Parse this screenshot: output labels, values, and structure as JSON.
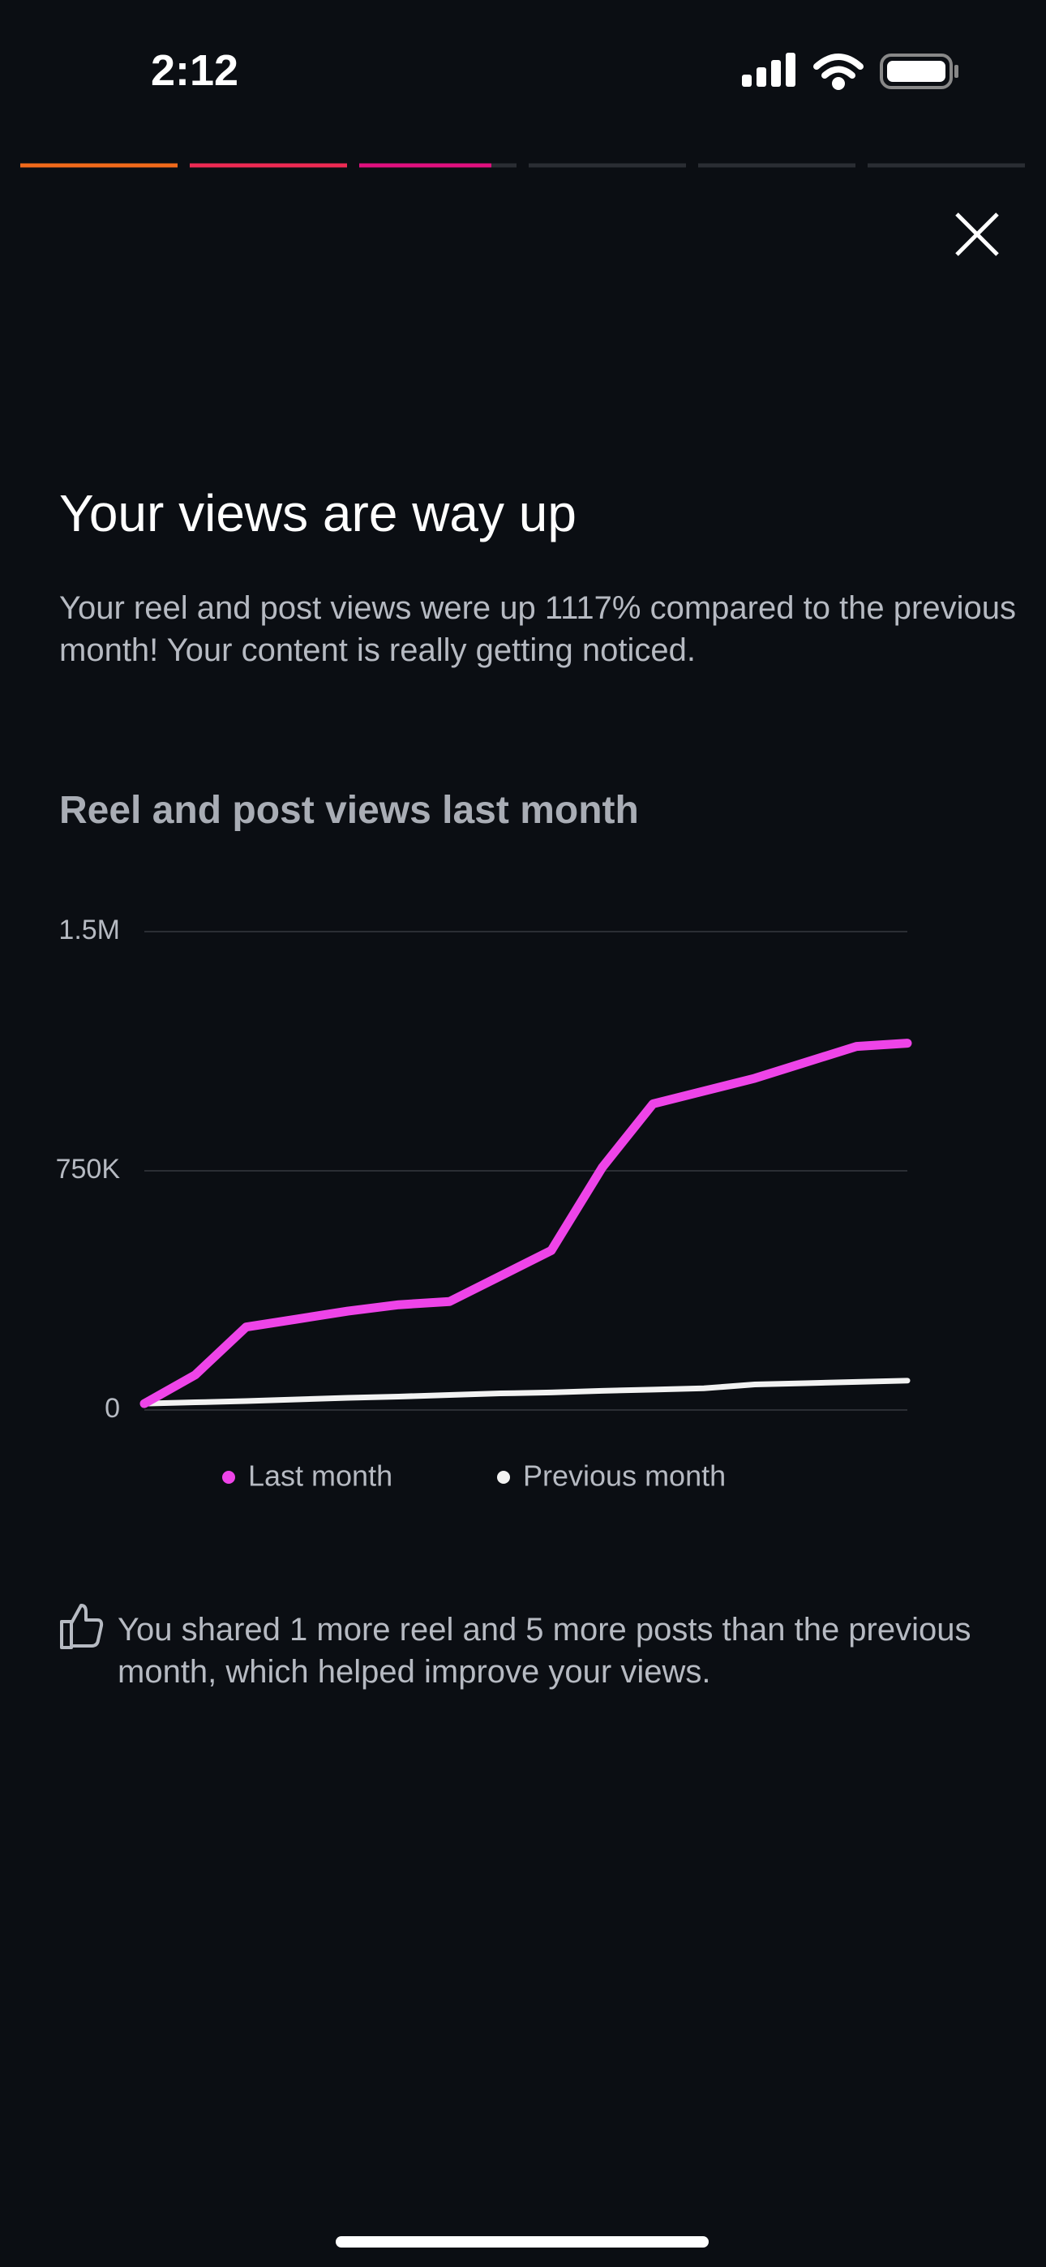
{
  "status_bar": {
    "time": "2:12"
  },
  "header": {
    "title": "Your views are way up",
    "body": "Your reel and post views were up 1117% compared to the previous month! Your content is really getting noticed."
  },
  "chart_data": {
    "type": "line",
    "title": "Reel and post views last month",
    "categories": [
      null,
      null,
      null,
      null,
      null,
      null,
      null,
      null,
      null,
      null,
      null,
      null,
      null,
      null,
      null,
      null
    ],
    "series": [
      {
        "name": "Last month",
        "color": "#ee44e8",
        "values": [
          20000,
          110000,
          260000,
          285000,
          310000,
          330000,
          340000,
          420000,
          500000,
          760000,
          960000,
          1000000,
          1040000,
          1090000,
          1140000,
          1150000
        ]
      },
      {
        "name": "Previous month",
        "color": "#f2f2f2",
        "values": [
          20000,
          24000,
          28000,
          33000,
          38000,
          42000,
          47000,
          52000,
          55000,
          60000,
          64000,
          68000,
          80000,
          84000,
          88000,
          92000
        ]
      }
    ],
    "ylim": [
      0,
      1500000
    ],
    "yticks": [
      0,
      {
        "value": 750000,
        "label": "750K"
      },
      {
        "value": 1500000,
        "label": "1.5M"
      }
    ],
    "grid": true
  },
  "footer": {
    "note": "You shared 1 more reel and 5 more posts than the previous month, which helped improve your views."
  }
}
